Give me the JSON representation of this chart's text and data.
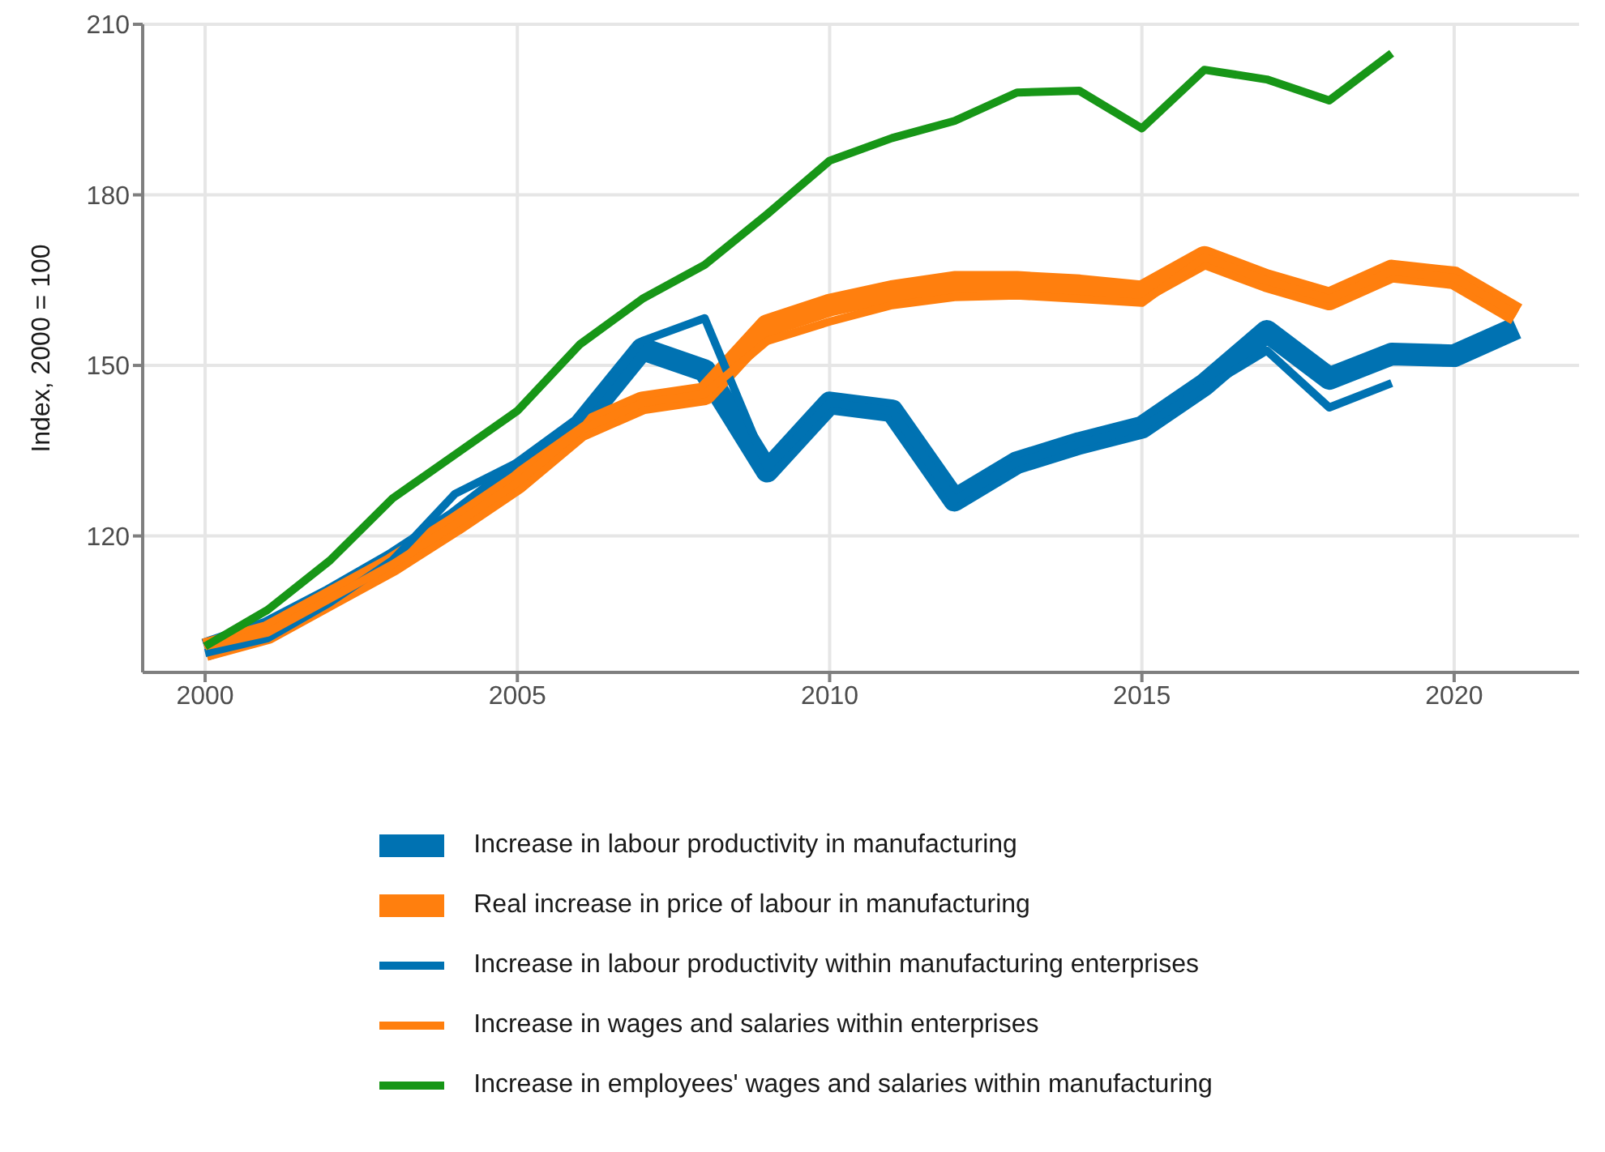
{
  "chart_data": {
    "type": "line",
    "ylabel": "Index, 2000 = 100",
    "x": [
      2000,
      2001,
      2002,
      2003,
      2004,
      2005,
      2006,
      2007,
      2008,
      2009,
      2010,
      2011,
      2012,
      2013,
      2014,
      2015,
      2016,
      2017,
      2018,
      2019,
      2020,
      2021
    ],
    "xlim": [
      1999,
      2022
    ],
    "xticks": [
      2000,
      2005,
      2010,
      2015,
      2020
    ],
    "ylim": [
      96,
      210
    ],
    "yticks": [
      120,
      150,
      180,
      210
    ],
    "grid": true,
    "legend": "bottom",
    "marker": "none",
    "line_style": "solid",
    "series": [
      {
        "name": "Increase in labour productivity in manufacturing",
        "color": "#0072b2",
        "values": [
          100,
          103.7,
          109.4,
          115.7,
          122.9,
          131.4,
          139.4,
          152.9,
          149.1,
          131.4,
          143.4,
          142,
          126.3,
          132.9,
          136.3,
          139.1,
          146.6,
          156,
          147.7,
          152,
          151.7,
          156.6
        ]
      },
      {
        "name": "Real increase in price of labour in manufacturing",
        "color": "#ff7f0e",
        "values": [
          100,
          103,
          109,
          115,
          122,
          129.4,
          138.6,
          143.4,
          145,
          157,
          160.6,
          163,
          164.6,
          164.6,
          164,
          162.9,
          169,
          164.9,
          161.7,
          166.6,
          165.4,
          159
        ]
      },
      {
        "name": "Increase in labour productivity within manufacturing enterprises",
        "color": "#0072b2",
        "values": [
          99.4,
          102,
          108.3,
          115.7,
          127.4,
          132.9,
          140.6,
          154.3,
          158.3,
          132,
          143.4,
          142,
          126.3,
          132.9,
          136.3,
          139.1,
          146,
          152.6,
          142.6,
          146.9,
          null,
          null
        ]
      },
      {
        "name": "Increase in wages and salaries within enterprises",
        "color": "#ff7f0e",
        "values": [
          100.6,
          103,
          109,
          115,
          122,
          129.4,
          138.6,
          143.4,
          145,
          154.3,
          157.7,
          160.6,
          162,
          162.3,
          161.7,
          161,
          169,
          164.9,
          161.7,
          166.6,
          165.4,
          159
        ]
      },
      {
        "name": "Increase in employees' wages and salaries within manufacturing",
        "color": "#179617",
        "values": [
          100.6,
          107,
          115.7,
          126.6,
          134.3,
          142,
          153.7,
          161.7,
          167.7,
          176.6,
          186,
          190,
          193,
          198,
          198.3,
          191.7,
          202,
          200.3,
          196.6,
          204.9,
          null,
          null
        ]
      }
    ]
  }
}
